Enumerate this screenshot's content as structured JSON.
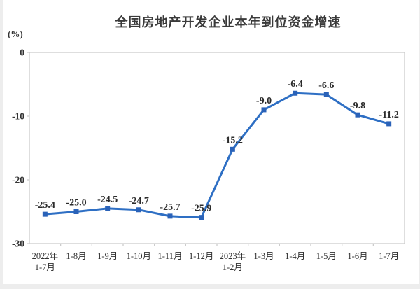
{
  "chart_data": {
    "type": "line",
    "title": "全国房地产开发企业本年到位资金增速",
    "ylabel": "(%)",
    "xlabel": "",
    "categories": [
      [
        "2022年",
        "1-7月"
      ],
      [
        "1-8月"
      ],
      [
        "1-9月"
      ],
      [
        "1-10月"
      ],
      [
        "1-11月"
      ],
      [
        "1-12月"
      ],
      [
        "2023年",
        "1-2月"
      ],
      [
        "1-3月"
      ],
      [
        "1-4月"
      ],
      [
        "1-5月"
      ],
      [
        "1-6月"
      ],
      [
        "1-7月"
      ]
    ],
    "values": [
      -25.4,
      -25.0,
      -24.5,
      -24.7,
      -25.7,
      -25.9,
      -15.2,
      -9.0,
      -6.4,
      -6.6,
      -9.8,
      -11.2
    ],
    "point_labels": [
      "-25.4",
      "-25.0",
      "-24.5",
      "-24.7",
      "-25.7",
      "-25.9",
      "-15.2",
      "-9.0",
      "-6.4",
      "-6.6",
      "-9.8",
      "-11.2"
    ],
    "ylim": [
      -30,
      0
    ],
    "yticks": [
      0,
      -10,
      -20,
      -30
    ],
    "ytick_labels": [
      "0",
      "-10",
      "-20",
      "-30"
    ],
    "grid": false,
    "legend": null,
    "marker": "square",
    "colors": {
      "line": "#2e6fc4",
      "marker": "#2a62b8",
      "axis_frame": "#c9c9c9",
      "tick_text": "#333333",
      "data_label": "#2b2b2b",
      "title_text": "#3a3a3a",
      "page_bg": "#ededed",
      "panel_bg": "#ffffff"
    }
  }
}
